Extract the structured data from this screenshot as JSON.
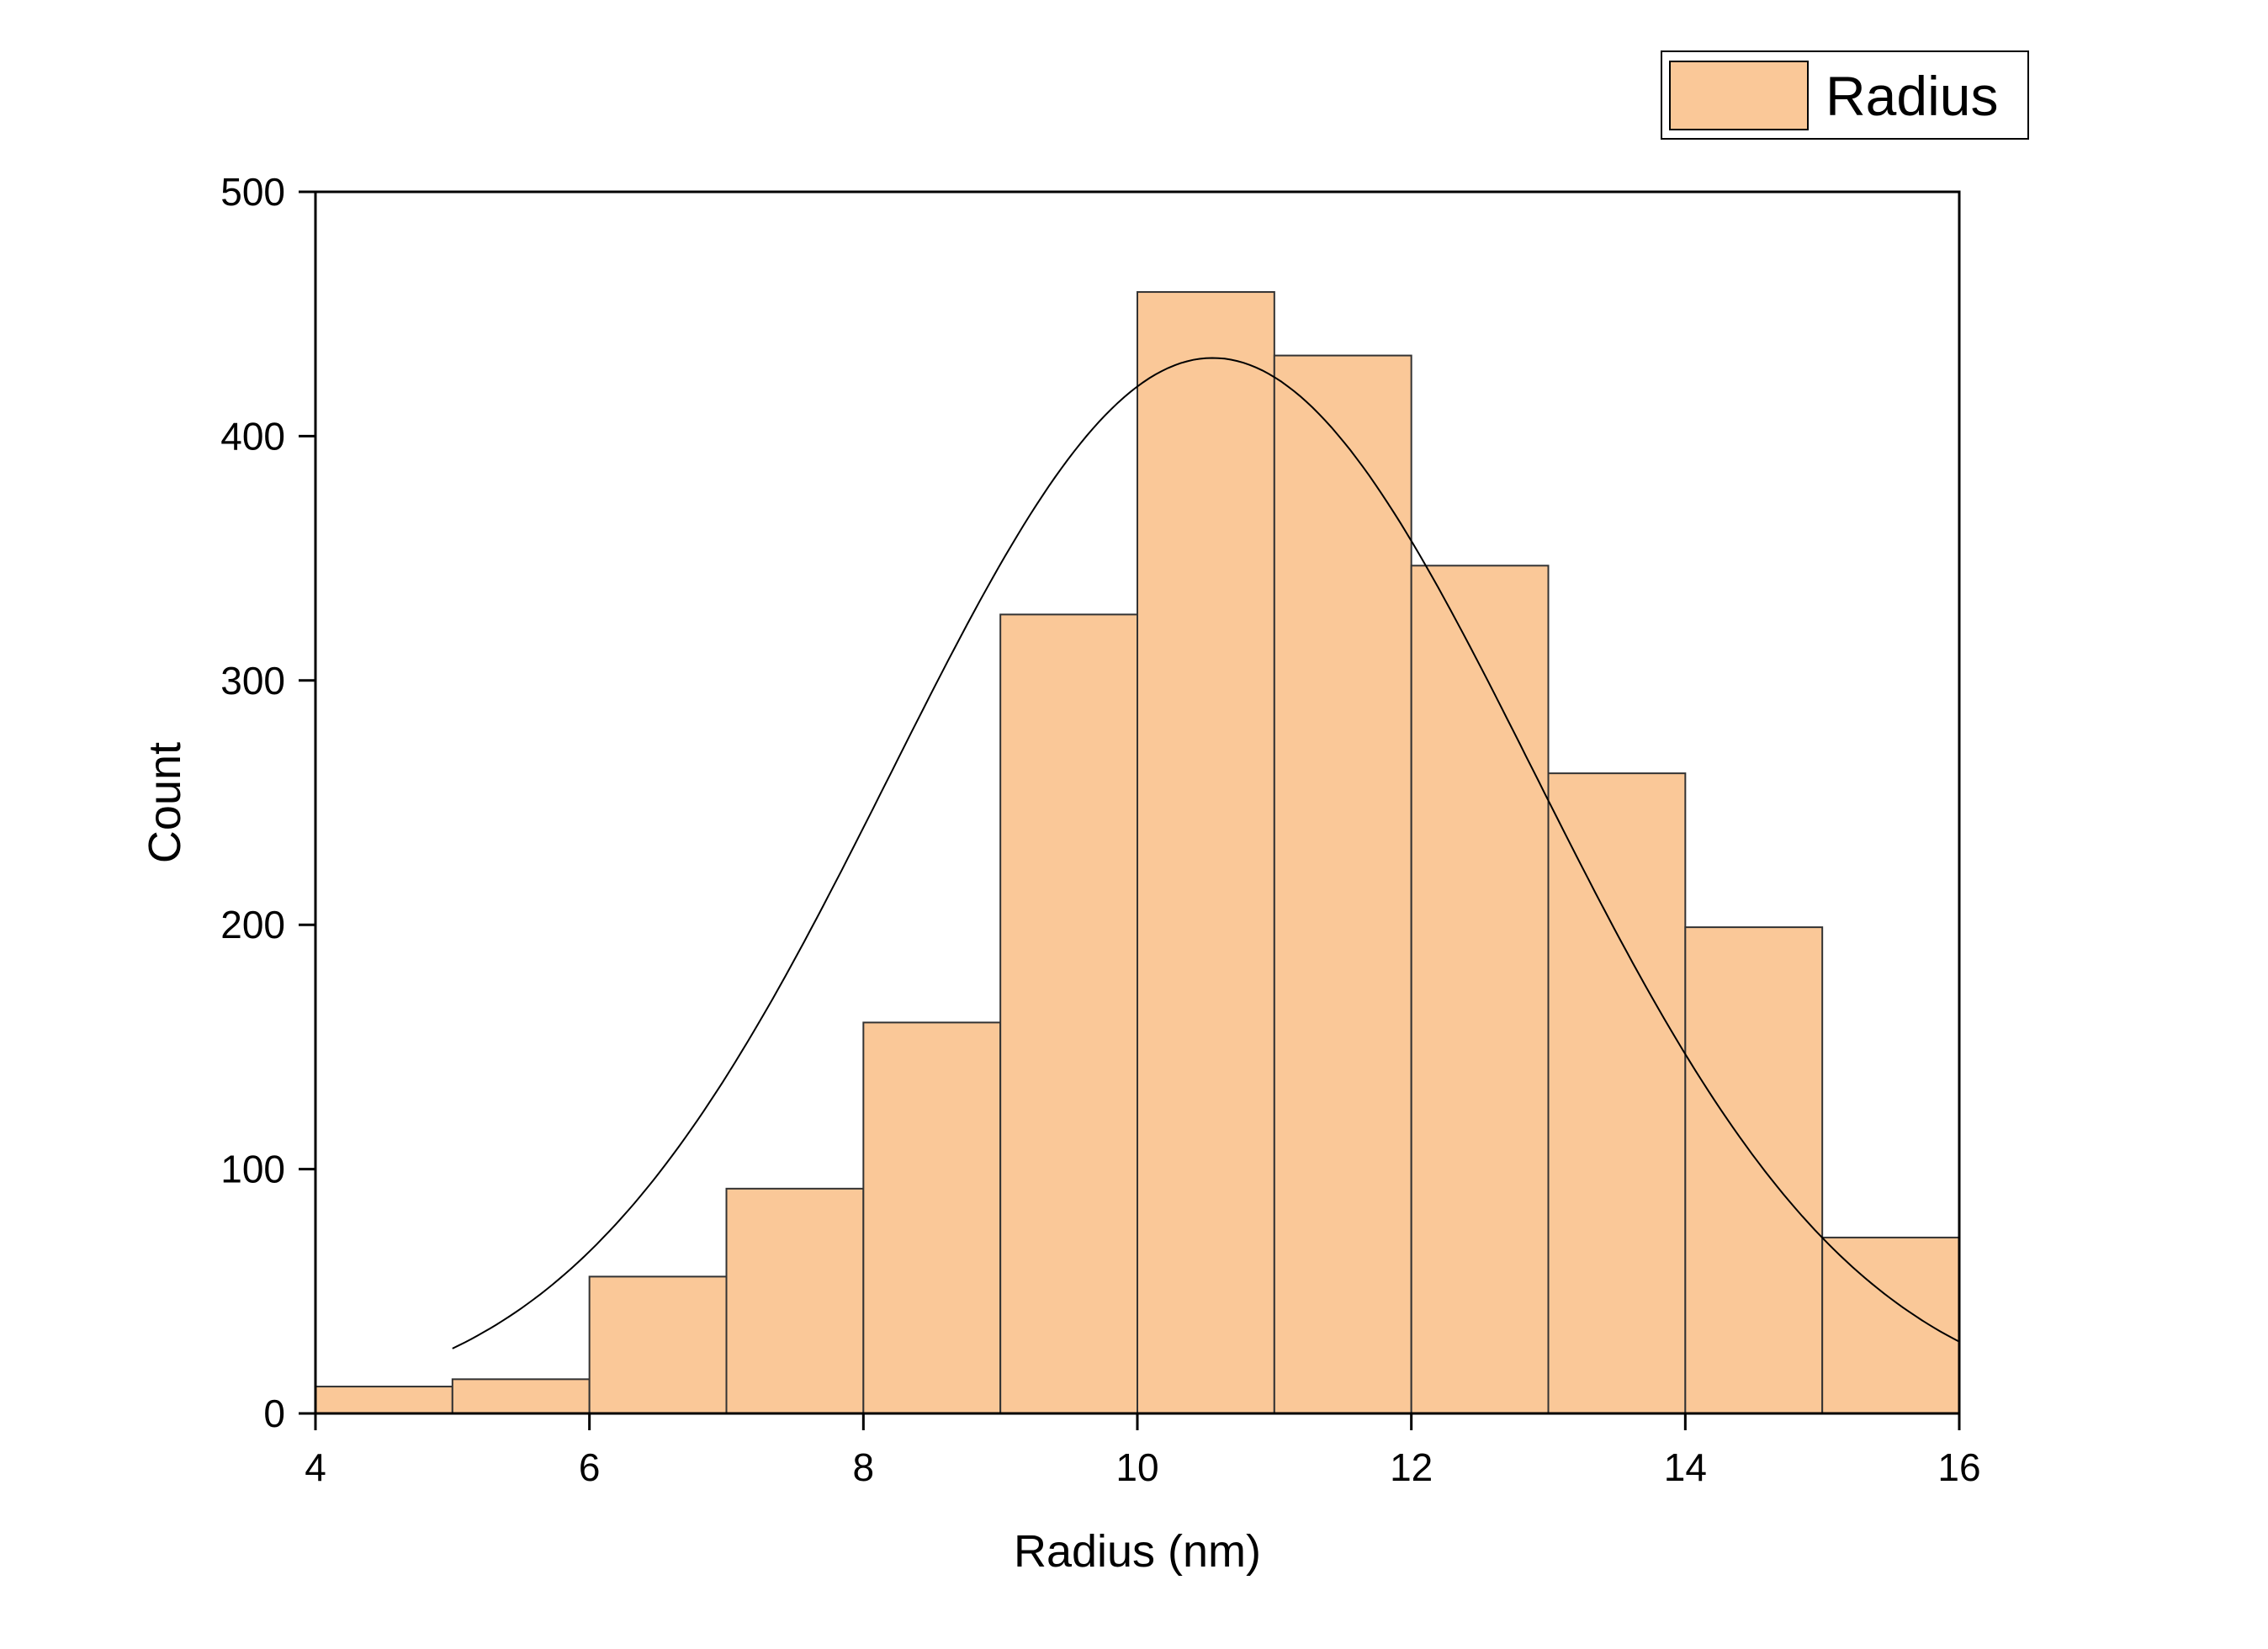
{
  "chart_data": {
    "type": "bar",
    "title": "",
    "xlabel": "Radius (nm)",
    "ylabel": "Count",
    "xlim": [
      4,
      16
    ],
    "ylim": [
      0,
      500
    ],
    "xticks": [
      4,
      6,
      8,
      10,
      12,
      14,
      16
    ],
    "yticks": [
      0,
      100,
      200,
      300,
      400,
      500
    ],
    "grid": false,
    "legend_position": "top-right",
    "bar_color": "#FAC898",
    "series": [
      {
        "name": "Radius",
        "bins": [
          {
            "x0": 4,
            "x1": 5,
            "count": 11
          },
          {
            "x0": 5,
            "x1": 6,
            "count": 14
          },
          {
            "x0": 6,
            "x1": 7,
            "count": 56
          },
          {
            "x0": 7,
            "x1": 8,
            "count": 92
          },
          {
            "x0": 8,
            "x1": 9,
            "count": 160
          },
          {
            "x0": 9,
            "x1": 10,
            "count": 327
          },
          {
            "x0": 10,
            "x1": 11,
            "count": 459
          },
          {
            "x0": 11,
            "x1": 12,
            "count": 433
          },
          {
            "x0": 12,
            "x1": 13,
            "count": 347
          },
          {
            "x0": 13,
            "x1": 14,
            "count": 262
          },
          {
            "x0": 14,
            "x1": 15,
            "count": 199
          },
          {
            "x0": 15,
            "x1": 16,
            "count": 72
          }
        ]
      }
    ],
    "fit_curve": {
      "type": "normal",
      "mean": 10.55,
      "sd": 2.35,
      "peak": 432,
      "x_start": 5.0,
      "x_end": 16
    }
  }
}
